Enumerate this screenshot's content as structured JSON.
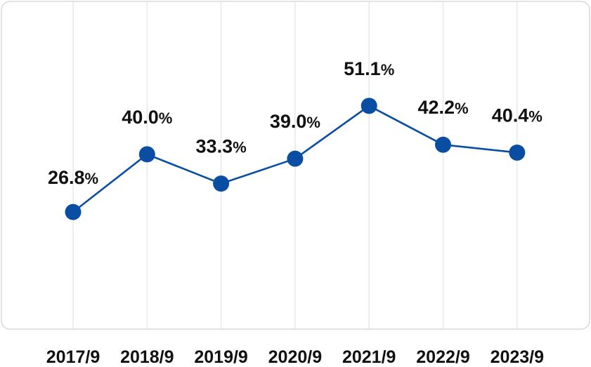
{
  "chart_data": {
    "type": "line",
    "categories": [
      "2017/9",
      "2018/9",
      "2019/9",
      "2020/9",
      "2021/9",
      "2022/9",
      "2023/9"
    ],
    "series": [
      {
        "values": [
          26.8,
          40.0,
          33.3,
          39.0,
          51.1,
          42.2,
          40.4
        ],
        "labels": [
          "26.8",
          "40.0",
          "33.3",
          "39.0",
          "51.1",
          "42.2",
          "40.4"
        ],
        "color": "#0a4ea3"
      }
    ],
    "value_unit": "%",
    "title": "",
    "xlabel": "",
    "ylabel": "",
    "ylim": [
      0,
      75
    ],
    "grid": "vertical",
    "legend": "none"
  }
}
